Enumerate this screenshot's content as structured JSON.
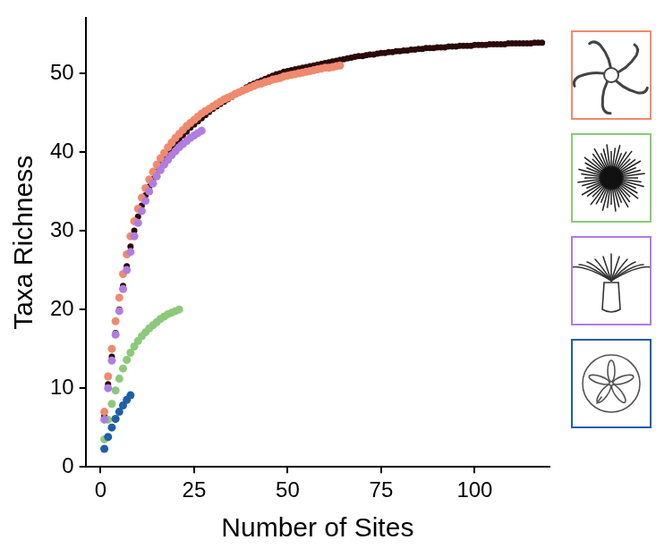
{
  "chart_data": {
    "type": "scatter",
    "xlabel": "Number of Sites",
    "ylabel": "Taxa Richness",
    "xlim": [
      -4,
      120
    ],
    "xticks": [
      0,
      25,
      50,
      75,
      100
    ],
    "ylim": [
      0,
      57
    ],
    "yticks": [
      0,
      10,
      20,
      30,
      40,
      50
    ],
    "grid": false,
    "marker": "circle",
    "series": [
      {
        "color": "#2a0a0a",
        "x": [
          1,
          2,
          3,
          4,
          5,
          6,
          7,
          8,
          9,
          10,
          11,
          12,
          13,
          14,
          15,
          16,
          17,
          18,
          19,
          20,
          21,
          22,
          23,
          24,
          25,
          26,
          27,
          28,
          29,
          30,
          31,
          32,
          33,
          34,
          35,
          36,
          37,
          38,
          39,
          40,
          41,
          42,
          43,
          44,
          45,
          46,
          47,
          48,
          49,
          50,
          51,
          52,
          53,
          54,
          55,
          56,
          57,
          58,
          59,
          60,
          61,
          62,
          63,
          64,
          65,
          66,
          67,
          68,
          69,
          70,
          71,
          72,
          73,
          74,
          75,
          76,
          77,
          78,
          79,
          80,
          81,
          82,
          83,
          84,
          85,
          86,
          87,
          88,
          89,
          90,
          91,
          92,
          93,
          94,
          95,
          96,
          97,
          98,
          99,
          100,
          101,
          102,
          103,
          104,
          105,
          106,
          107,
          108,
          109,
          110,
          111,
          112,
          113,
          114,
          115,
          116,
          117,
          118
        ],
        "values": [
          6.5,
          10.5,
          14,
          17,
          20,
          23,
          25.5,
          28,
          30,
          31.8,
          33.2,
          34.5,
          35.6,
          36.6,
          37.5,
          38.4,
          39.2,
          39.9,
          40.5,
          41.1,
          41.6,
          42.1,
          42.6,
          43.1,
          43.5,
          43.9,
          44.3,
          44.7,
          45.1,
          45.5,
          45.8,
          46.1,
          46.4,
          46.7,
          47,
          47.3,
          47.6,
          47.9,
          48.2,
          48.5,
          48.7,
          48.9,
          49.1,
          49.3,
          49.5,
          49.7,
          49.9,
          50,
          50.2,
          50.3,
          50.4,
          50.5,
          50.6,
          50.7,
          50.8,
          50.9,
          51,
          51.1,
          51.2,
          51.3,
          51.4,
          51.5,
          51.6,
          51.7,
          51.8,
          51.9,
          52,
          52.1,
          52.2,
          52.2,
          52.3,
          52.4,
          52.4,
          52.5,
          52.6,
          52.6,
          52.7,
          52.7,
          52.8,
          52.8,
          52.9,
          52.9,
          53,
          53,
          53.1,
          53.1,
          53.2,
          53.2,
          53.2,
          53.3,
          53.3,
          53.3,
          53.4,
          53.4,
          53.4,
          53.5,
          53.5,
          53.5,
          53.5,
          53.6,
          53.6,
          53.6,
          53.6,
          53.7,
          53.7,
          53.7,
          53.7,
          53.7,
          53.8,
          53.8,
          53.8,
          53.8,
          53.8,
          53.8,
          53.8,
          53.9,
          53.9,
          53.9
        ]
      },
      {
        "color": "#f08a6e",
        "x": [
          1,
          2,
          3,
          4,
          5,
          6,
          7,
          8,
          9,
          10,
          11,
          12,
          13,
          14,
          15,
          16,
          17,
          18,
          19,
          20,
          21,
          22,
          23,
          24,
          25,
          26,
          27,
          28,
          29,
          30,
          31,
          32,
          33,
          34,
          35,
          36,
          37,
          38,
          39,
          40,
          41,
          42,
          43,
          44,
          45,
          46,
          47,
          48,
          49,
          50,
          51,
          52,
          53,
          54,
          55,
          56,
          57,
          58,
          59,
          60,
          61,
          62,
          63,
          64
        ],
        "values": [
          7,
          11.5,
          15,
          18.5,
          21.5,
          24.5,
          27,
          29.3,
          31.2,
          32.8,
          34.2,
          35.4,
          36.5,
          37.5,
          38.4,
          39.2,
          39.9,
          40.6,
          41.2,
          41.8,
          42.3,
          42.8,
          43.3,
          43.7,
          44.1,
          44.5,
          44.9,
          45.2,
          45.5,
          45.8,
          46.1,
          46.4,
          46.7,
          46.9,
          47.1,
          47.4,
          47.6,
          47.8,
          48,
          48.2,
          48.4,
          48.6,
          48.7,
          48.9,
          49,
          49.2,
          49.3,
          49.4,
          49.6,
          49.7,
          49.8,
          49.9,
          50,
          50.1,
          50.2,
          50.3,
          50.4,
          50.5,
          50.6,
          50.7,
          50.7,
          50.8,
          50.9,
          51
        ]
      },
      {
        "color": "#8cc97a",
        "x": [
          1,
          2,
          3,
          4,
          5,
          6,
          7,
          8,
          9,
          10,
          11,
          12,
          13,
          14,
          15,
          16,
          17,
          18,
          19,
          20,
          21
        ],
        "values": [
          3.5,
          6,
          8,
          9.7,
          11.2,
          12.5,
          13.6,
          14.5,
          15.3,
          16,
          16.6,
          17.1,
          17.6,
          18,
          18.4,
          18.8,
          19.1,
          19.4,
          19.6,
          19.8,
          20
        ]
      },
      {
        "color": "#b07de0",
        "x": [
          1,
          2,
          3,
          4,
          5,
          6,
          7,
          8,
          9,
          10,
          11,
          12,
          13,
          14,
          15,
          16,
          17,
          18,
          19,
          20,
          21,
          22,
          23,
          24,
          25,
          26,
          27
        ],
        "values": [
          6,
          10,
          13.5,
          16.8,
          19.8,
          22.6,
          25,
          27.3,
          29.3,
          31,
          32.5,
          33.8,
          35,
          36,
          36.9,
          37.7,
          38.4,
          39,
          39.6,
          40.1,
          40.6,
          41,
          41.4,
          41.8,
          42.1,
          42.4,
          42.7
        ]
      },
      {
        "color": "#1f5fa8",
        "x": [
          1,
          2,
          3,
          4,
          5,
          6,
          7,
          8
        ],
        "values": [
          2.3,
          3.8,
          5,
          6.1,
          7,
          7.8,
          8.5,
          9.1
        ]
      }
    ]
  }
}
